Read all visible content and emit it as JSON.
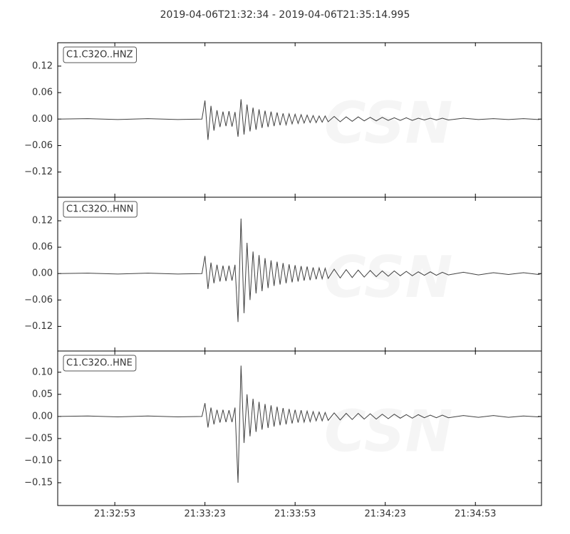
{
  "watermark": "CSN",
  "chart_data": [
    {
      "type": "line",
      "title": "2019-04-06T21:32:34  -  2019-04-06T21:35:14.995",
      "x": [
        0,
        10,
        20,
        30,
        40,
        48,
        49,
        50,
        51,
        52,
        53,
        54,
        55,
        56,
        57,
        58,
        59,
        60,
        61,
        62,
        63,
        64,
        65,
        66,
        67,
        68,
        69,
        70,
        71,
        72,
        73,
        74,
        75,
        76,
        77,
        78,
        79,
        80,
        81,
        82,
        83,
        84,
        85,
        86,
        87,
        88,
        89,
        90,
        92,
        94,
        96,
        98,
        100,
        102,
        104,
        106,
        108,
        110,
        112,
        114,
        116,
        118,
        120,
        122,
        124,
        126,
        128,
        130,
        135,
        140,
        145,
        150,
        155,
        160,
        161
      ],
      "series": [
        {
          "name": "C1.C32O..HNZ",
          "color": "#404040",
          "values": [
            0,
            0.001,
            -0.001,
            0.001,
            -0.001,
            0,
            0.042,
            -0.047,
            0.03,
            -0.026,
            0.02,
            -0.018,
            0.017,
            -0.016,
            0.018,
            -0.017,
            0.016,
            -0.04,
            0.045,
            -0.035,
            0.033,
            -0.028,
            0.026,
            -0.024,
            0.022,
            -0.02,
            0.019,
            -0.018,
            0.017,
            -0.016,
            0.015,
            -0.014,
            0.013,
            -0.013,
            0.012,
            -0.011,
            0.011,
            -0.01,
            0.01,
            -0.009,
            0.009,
            -0.008,
            0.008,
            -0.008,
            0.007,
            -0.007,
            0.007,
            -0.006,
            0.006,
            -0.006,
            0.005,
            -0.005,
            0.005,
            -0.004,
            0.004,
            -0.004,
            0.004,
            -0.003,
            0.003,
            -0.003,
            0.003,
            -0.003,
            0.002,
            -0.002,
            0.002,
            -0.002,
            0.002,
            -0.002,
            0.002,
            -0.001,
            0.001,
            -0.001,
            0.001,
            -0.001,
            0
          ]
        }
      ],
      "xlim": [
        0,
        160.995
      ],
      "ylim": [
        -0.177,
        0.173
      ],
      "yticks": [
        {
          "value": 0.12,
          "label": "0.12"
        },
        {
          "value": 0.06,
          "label": "0.06"
        },
        {
          "value": 0,
          "label": "0.00"
        },
        {
          "value": -0.06,
          "label": "−0.06"
        },
        {
          "value": -0.12,
          "label": "−0.12"
        }
      ]
    },
    {
      "type": "line",
      "x": [
        0,
        10,
        20,
        30,
        40,
        48,
        49,
        50,
        51,
        52,
        53,
        54,
        55,
        56,
        57,
        58,
        59,
        60,
        61,
        62,
        63,
        64,
        65,
        66,
        67,
        68,
        69,
        70,
        71,
        72,
        73,
        74,
        75,
        76,
        77,
        78,
        79,
        80,
        81,
        82,
        83,
        84,
        85,
        86,
        87,
        88,
        89,
        90,
        92,
        94,
        96,
        98,
        100,
        102,
        104,
        106,
        108,
        110,
        112,
        114,
        116,
        118,
        120,
        122,
        124,
        126,
        128,
        130,
        135,
        140,
        145,
        150,
        155,
        160,
        161
      ],
      "series": [
        {
          "name": "C1.C32O..HNN",
          "color": "#404040",
          "values": [
            0,
            0.001,
            -0.001,
            0.001,
            -0.001,
            0,
            0.04,
            -0.035,
            0.025,
            -0.022,
            0.02,
            -0.018,
            0.018,
            -0.017,
            0.018,
            -0.016,
            0.02,
            -0.11,
            0.125,
            -0.09,
            0.07,
            -0.06,
            0.05,
            -0.045,
            0.042,
            -0.04,
            0.035,
            -0.033,
            0.03,
            -0.028,
            0.027,
            -0.025,
            0.024,
            -0.022,
            0.021,
            -0.02,
            0.019,
            -0.018,
            0.017,
            -0.016,
            0.016,
            -0.015,
            0.014,
            -0.013,
            0.013,
            -0.012,
            0.012,
            -0.011,
            0.01,
            -0.01,
            0.009,
            -0.009,
            0.008,
            -0.008,
            0.007,
            -0.007,
            0.006,
            -0.006,
            0.006,
            -0.005,
            0.005,
            -0.005,
            0.004,
            -0.004,
            0.004,
            -0.004,
            0.003,
            -0.003,
            0.003,
            -0.003,
            0.002,
            -0.002,
            0.002,
            -0.002,
            0
          ]
        }
      ],
      "xlim": [
        0,
        160.995
      ],
      "ylim": [
        -0.176,
        0.1735
      ],
      "yticks": [
        {
          "value": 0.12,
          "label": "0.12"
        },
        {
          "value": 0.06,
          "label": "0.06"
        },
        {
          "value": 0,
          "label": "0.00"
        },
        {
          "value": -0.06,
          "label": "−0.06"
        },
        {
          "value": -0.12,
          "label": "−0.12"
        }
      ]
    },
    {
      "type": "line",
      "x": [
        0,
        10,
        20,
        30,
        40,
        48,
        49,
        50,
        51,
        52,
        53,
        54,
        55,
        56,
        57,
        58,
        59,
        60,
        61,
        62,
        63,
        64,
        65,
        66,
        67,
        68,
        69,
        70,
        71,
        72,
        73,
        74,
        75,
        76,
        77,
        78,
        79,
        80,
        81,
        82,
        83,
        84,
        85,
        86,
        87,
        88,
        89,
        90,
        92,
        94,
        96,
        98,
        100,
        102,
        104,
        106,
        108,
        110,
        112,
        114,
        116,
        118,
        120,
        122,
        124,
        126,
        128,
        130,
        135,
        140,
        145,
        150,
        155,
        160,
        161
      ],
      "series": [
        {
          "name": "C1.C32O..HNE",
          "color": "#404040",
          "values": [
            0,
            0.001,
            -0.001,
            0.001,
            -0.001,
            0,
            0.03,
            -0.025,
            0.02,
            -0.018,
            0.015,
            -0.014,
            0.015,
            -0.013,
            0.014,
            -0.013,
            0.02,
            -0.15,
            0.115,
            -0.06,
            0.05,
            -0.045,
            0.04,
            -0.035,
            0.033,
            -0.03,
            0.028,
            -0.026,
            0.025,
            -0.023,
            0.022,
            -0.02,
            0.019,
            -0.018,
            0.017,
            -0.016,
            0.015,
            -0.014,
            0.014,
            -0.013,
            0.012,
            -0.012,
            0.011,
            -0.01,
            0.01,
            -0.01,
            0.009,
            -0.009,
            0.008,
            -0.008,
            0.007,
            -0.007,
            0.007,
            -0.006,
            0.006,
            -0.006,
            0.005,
            -0.005,
            0.005,
            -0.004,
            0.004,
            -0.004,
            0.004,
            -0.003,
            0.003,
            -0.003,
            0.003,
            -0.003,
            0.002,
            -0.002,
            0.002,
            -0.002,
            0.001,
            -0.001,
            0
          ]
        }
      ],
      "xlim": [
        0,
        160.995
      ],
      "ylim": [
        -0.2016,
        0.148
      ],
      "yticks": [
        {
          "value": 0.1,
          "label": "0.10"
        },
        {
          "value": 0.05,
          "label": "0.05"
        },
        {
          "value": 0,
          "label": "0.00"
        },
        {
          "value": -0.05,
          "label": "−0.05"
        },
        {
          "value": -0.1,
          "label": "−0.10"
        },
        {
          "value": -0.15,
          "label": "−0.15"
        }
      ],
      "xticks": [
        {
          "value": 19,
          "label": "21:32:53"
        },
        {
          "value": 49,
          "label": "21:33:23"
        },
        {
          "value": 79,
          "label": "21:33:53"
        },
        {
          "value": 109,
          "label": "21:34:23"
        },
        {
          "value": 139,
          "label": "21:34:53"
        }
      ]
    }
  ]
}
